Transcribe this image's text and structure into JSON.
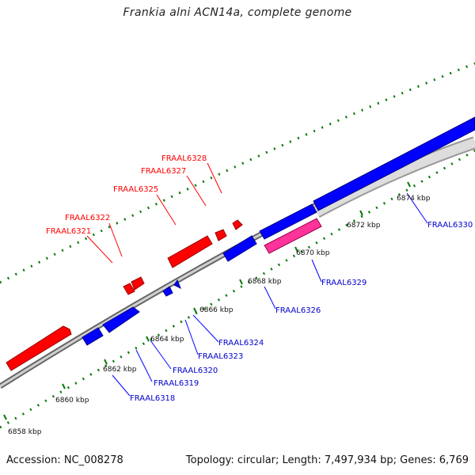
{
  "title": "Frankia alni ACN14a, complete genome",
  "footer": {
    "accession": "Accession: NC_008278",
    "summary": "Topology: circular; Length: 7,497,934 bp; Genes: 6,769"
  },
  "colors": {
    "forward_gene": "#ff0000",
    "reverse_gene": "#0000ff",
    "rna_gene": "#ff3399",
    "backbone": "#888888",
    "ticks": "#0a7a0a"
  },
  "scale_labels": [
    "6858 kbp",
    "6860 kbp",
    "6862 kbp",
    "6864 kbp",
    "6866 kbp",
    "6868 kbp",
    "6870 kbp",
    "6872 kbp",
    "6874 kbp"
  ],
  "gene_labels_forward": [
    "FRAAL6321",
    "FRAAL6322",
    "FRAAL6325",
    "FRAAL6327",
    "FRAAL6328"
  ],
  "gene_labels_reverse": [
    "FRAAL6318",
    "FRAAL6319",
    "FRAAL6320",
    "FRAAL6323",
    "FRAAL6324",
    "FRAAL6326",
    "FRAAL6329",
    "FRAAL6330"
  ]
}
